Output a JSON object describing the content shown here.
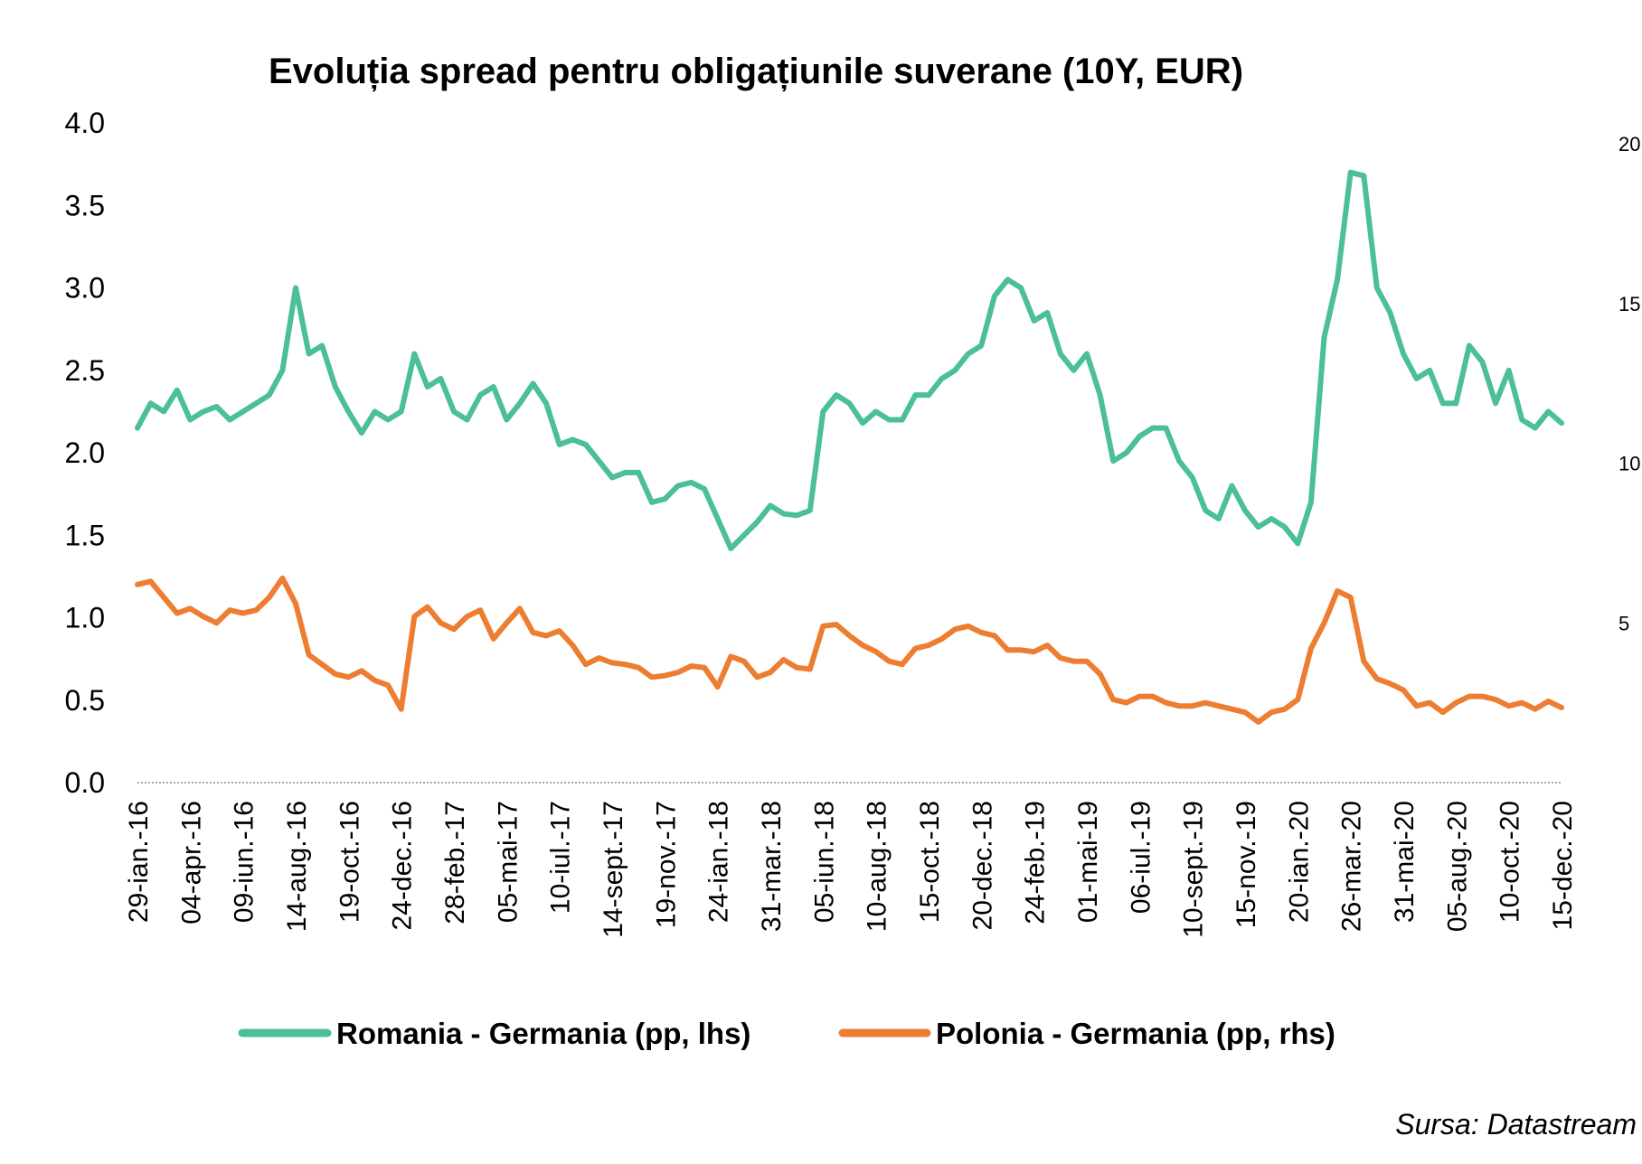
{
  "chart_data": {
    "type": "line",
    "title": "Evoluția spread pentru obligațiunile suverane (10Y, EUR)",
    "source": "Sursa: Datastream",
    "y_left": {
      "ticks": [
        "0.0",
        "0.5",
        "1.0",
        "1.5",
        "2.0",
        "2.5",
        "3.0",
        "3.5",
        "4.0"
      ],
      "range": [
        0,
        4
      ]
    },
    "y_right": {
      "ticks": [
        "5",
        "10",
        "15",
        "20"
      ],
      "range": [
        0,
        20
      ],
      "note": "partially cropped"
    },
    "x_ticks": [
      "29-ian.-16",
      "04-apr.-16",
      "09-iun.-16",
      "14-aug.-16",
      "19-oct.-16",
      "24-dec.-16",
      "28-feb.-17",
      "05-mai-17",
      "10-iul.-17",
      "14-sept.-17",
      "19-nov.-17",
      "24-ian.-18",
      "31-mar.-18",
      "05-iun.-18",
      "10-aug.-18",
      "15-oct.-18",
      "20-dec.-18",
      "24-feb.-19",
      "01-mai-19",
      "06-iul.-19",
      "10-sept.-19",
      "15-nov.-19",
      "20-ian.-20",
      "26-mar.-20",
      "31-mai-20",
      "05-aug.-20",
      "10-oct.-20",
      "15-dec.-20"
    ],
    "series": [
      {
        "name": "Romania - Germania (pp, lhs)",
        "color": "#4bbf95",
        "x": [
          0,
          0.25,
          0.5,
          0.75,
          1,
          1.25,
          1.5,
          1.75,
          2,
          2.25,
          2.5,
          2.75,
          3,
          3.25,
          3.5,
          3.75,
          4,
          4.25,
          4.5,
          4.75,
          5,
          5.25,
          5.5,
          5.75,
          6,
          6.25,
          6.5,
          6.75,
          7,
          7.25,
          7.5,
          7.75,
          8,
          8.25,
          8.5,
          8.75,
          9,
          9.25,
          9.5,
          9.75,
          10,
          10.25,
          10.5,
          10.75,
          11,
          11.25,
          11.5,
          11.75,
          12,
          12.25,
          12.5,
          12.75,
          13,
          13.25,
          13.5,
          13.75,
          14,
          14.25,
          14.5,
          14.75,
          15,
          15.25,
          15.5,
          15.75,
          16,
          16.25,
          16.5,
          16.75,
          17,
          17.25,
          17.5,
          17.75,
          18,
          18.25,
          18.5,
          18.75,
          19,
          19.25,
          19.5,
          19.75,
          20,
          20.25,
          20.5,
          20.75,
          21,
          21.25,
          21.5,
          21.75,
          22,
          22.25,
          22.5,
          22.75,
          23,
          23.25,
          23.5,
          23.75,
          24,
          24.25,
          24.5,
          24.75,
          25,
          25.25,
          25.5,
          25.75,
          26,
          26.25,
          26.5,
          26.75,
          27
        ],
        "values": [
          2.15,
          2.3,
          2.25,
          2.38,
          2.2,
          2.25,
          2.28,
          2.2,
          2.25,
          2.3,
          2.35,
          2.5,
          3.0,
          2.6,
          2.65,
          2.4,
          2.25,
          2.12,
          2.25,
          2.2,
          2.25,
          2.6,
          2.4,
          2.45,
          2.25,
          2.2,
          2.35,
          2.4,
          2.2,
          2.3,
          2.42,
          2.3,
          2.05,
          2.08,
          2.05,
          1.95,
          1.85,
          1.88,
          1.88,
          1.7,
          1.72,
          1.8,
          1.82,
          1.78,
          1.6,
          1.42,
          1.5,
          1.58,
          1.68,
          1.63,
          1.62,
          1.65,
          2.25,
          2.35,
          2.3,
          2.18,
          2.25,
          2.2,
          2.2,
          2.35,
          2.35,
          2.45,
          2.5,
          2.6,
          2.65,
          2.95,
          3.05,
          3.0,
          2.8,
          2.85,
          2.6,
          2.5,
          2.6,
          2.35,
          1.95,
          2.0,
          2.1,
          2.15,
          2.15,
          1.95,
          1.85,
          1.65,
          1.6,
          1.8,
          1.65,
          1.55,
          1.6,
          1.55,
          1.45,
          1.7,
          2.7,
          3.05,
          3.7,
          3.68,
          3.0,
          2.85,
          2.6,
          2.45,
          2.5,
          2.3,
          2.3,
          2.65,
          2.55,
          2.3,
          2.5,
          2.2,
          2.15,
          2.25,
          2.18
        ]
      },
      {
        "name": "Polonia - Germania (pp, rhs)",
        "color": "#ed7d31",
        "x": [
          0,
          0.25,
          0.5,
          0.75,
          1,
          1.25,
          1.5,
          1.75,
          2,
          2.25,
          2.5,
          2.75,
          3,
          3.25,
          3.5,
          3.75,
          4,
          4.25,
          4.5,
          4.75,
          5,
          5.25,
          5.5,
          5.75,
          6,
          6.25,
          6.5,
          6.75,
          7,
          7.25,
          7.5,
          7.75,
          8,
          8.25,
          8.5,
          8.75,
          9,
          9.25,
          9.5,
          9.75,
          10,
          10.25,
          10.5,
          10.75,
          11,
          11.25,
          11.5,
          11.75,
          12,
          12.25,
          12.5,
          12.75,
          13,
          13.25,
          13.5,
          13.75,
          14,
          14.25,
          14.5,
          14.75,
          15,
          15.25,
          15.5,
          15.75,
          16,
          16.25,
          16.5,
          16.75,
          17,
          17.25,
          17.5,
          17.75,
          18,
          18.25,
          18.5,
          18.75,
          19,
          19.25,
          19.5,
          19.75,
          20,
          20.25,
          20.5,
          20.75,
          21,
          21.25,
          21.5,
          21.75,
          22,
          22.25,
          22.5,
          22.75,
          23,
          23.25,
          23.5,
          23.75,
          24,
          24.25,
          24.5,
          24.75,
          25,
          25.25,
          25.5,
          25.75,
          26,
          26.25,
          26.5,
          26.75,
          27
        ],
        "values": [
          6.2,
          6.3,
          5.8,
          5.3,
          5.45,
          5.2,
          5.0,
          5.4,
          5.3,
          5.4,
          5.8,
          6.4,
          5.6,
          4.0,
          3.7,
          3.4,
          3.3,
          3.5,
          3.2,
          3.05,
          2.3,
          5.2,
          5.5,
          5.0,
          4.8,
          5.2,
          5.4,
          4.5,
          5.0,
          5.45,
          4.7,
          4.6,
          4.75,
          4.3,
          3.7,
          3.9,
          3.75,
          3.7,
          3.6,
          3.3,
          3.35,
          3.45,
          3.65,
          3.6,
          3.0,
          3.95,
          3.8,
          3.3,
          3.45,
          3.85,
          3.6,
          3.55,
          4.9,
          4.95,
          4.6,
          4.3,
          4.1,
          3.8,
          3.7,
          4.2,
          4.3,
          4.5,
          4.8,
          4.9,
          4.7,
          4.6,
          4.15,
          4.15,
          4.1,
          4.3,
          3.9,
          3.8,
          3.8,
          3.4,
          2.6,
          2.5,
          2.7,
          2.7,
          2.5,
          2.4,
          2.4,
          2.5,
          2.4,
          2.3,
          2.2,
          1.9,
          2.2,
          2.3,
          2.6,
          4.2,
          5.0,
          6.0,
          5.8,
          3.8,
          3.25,
          3.1,
          2.9,
          2.4,
          2.5,
          2.2,
          2.5,
          2.7,
          2.7,
          2.6,
          2.4,
          2.5,
          2.3,
          2.55,
          2.35
        ]
      }
    ],
    "legend": "bottom-center",
    "grid": false
  }
}
